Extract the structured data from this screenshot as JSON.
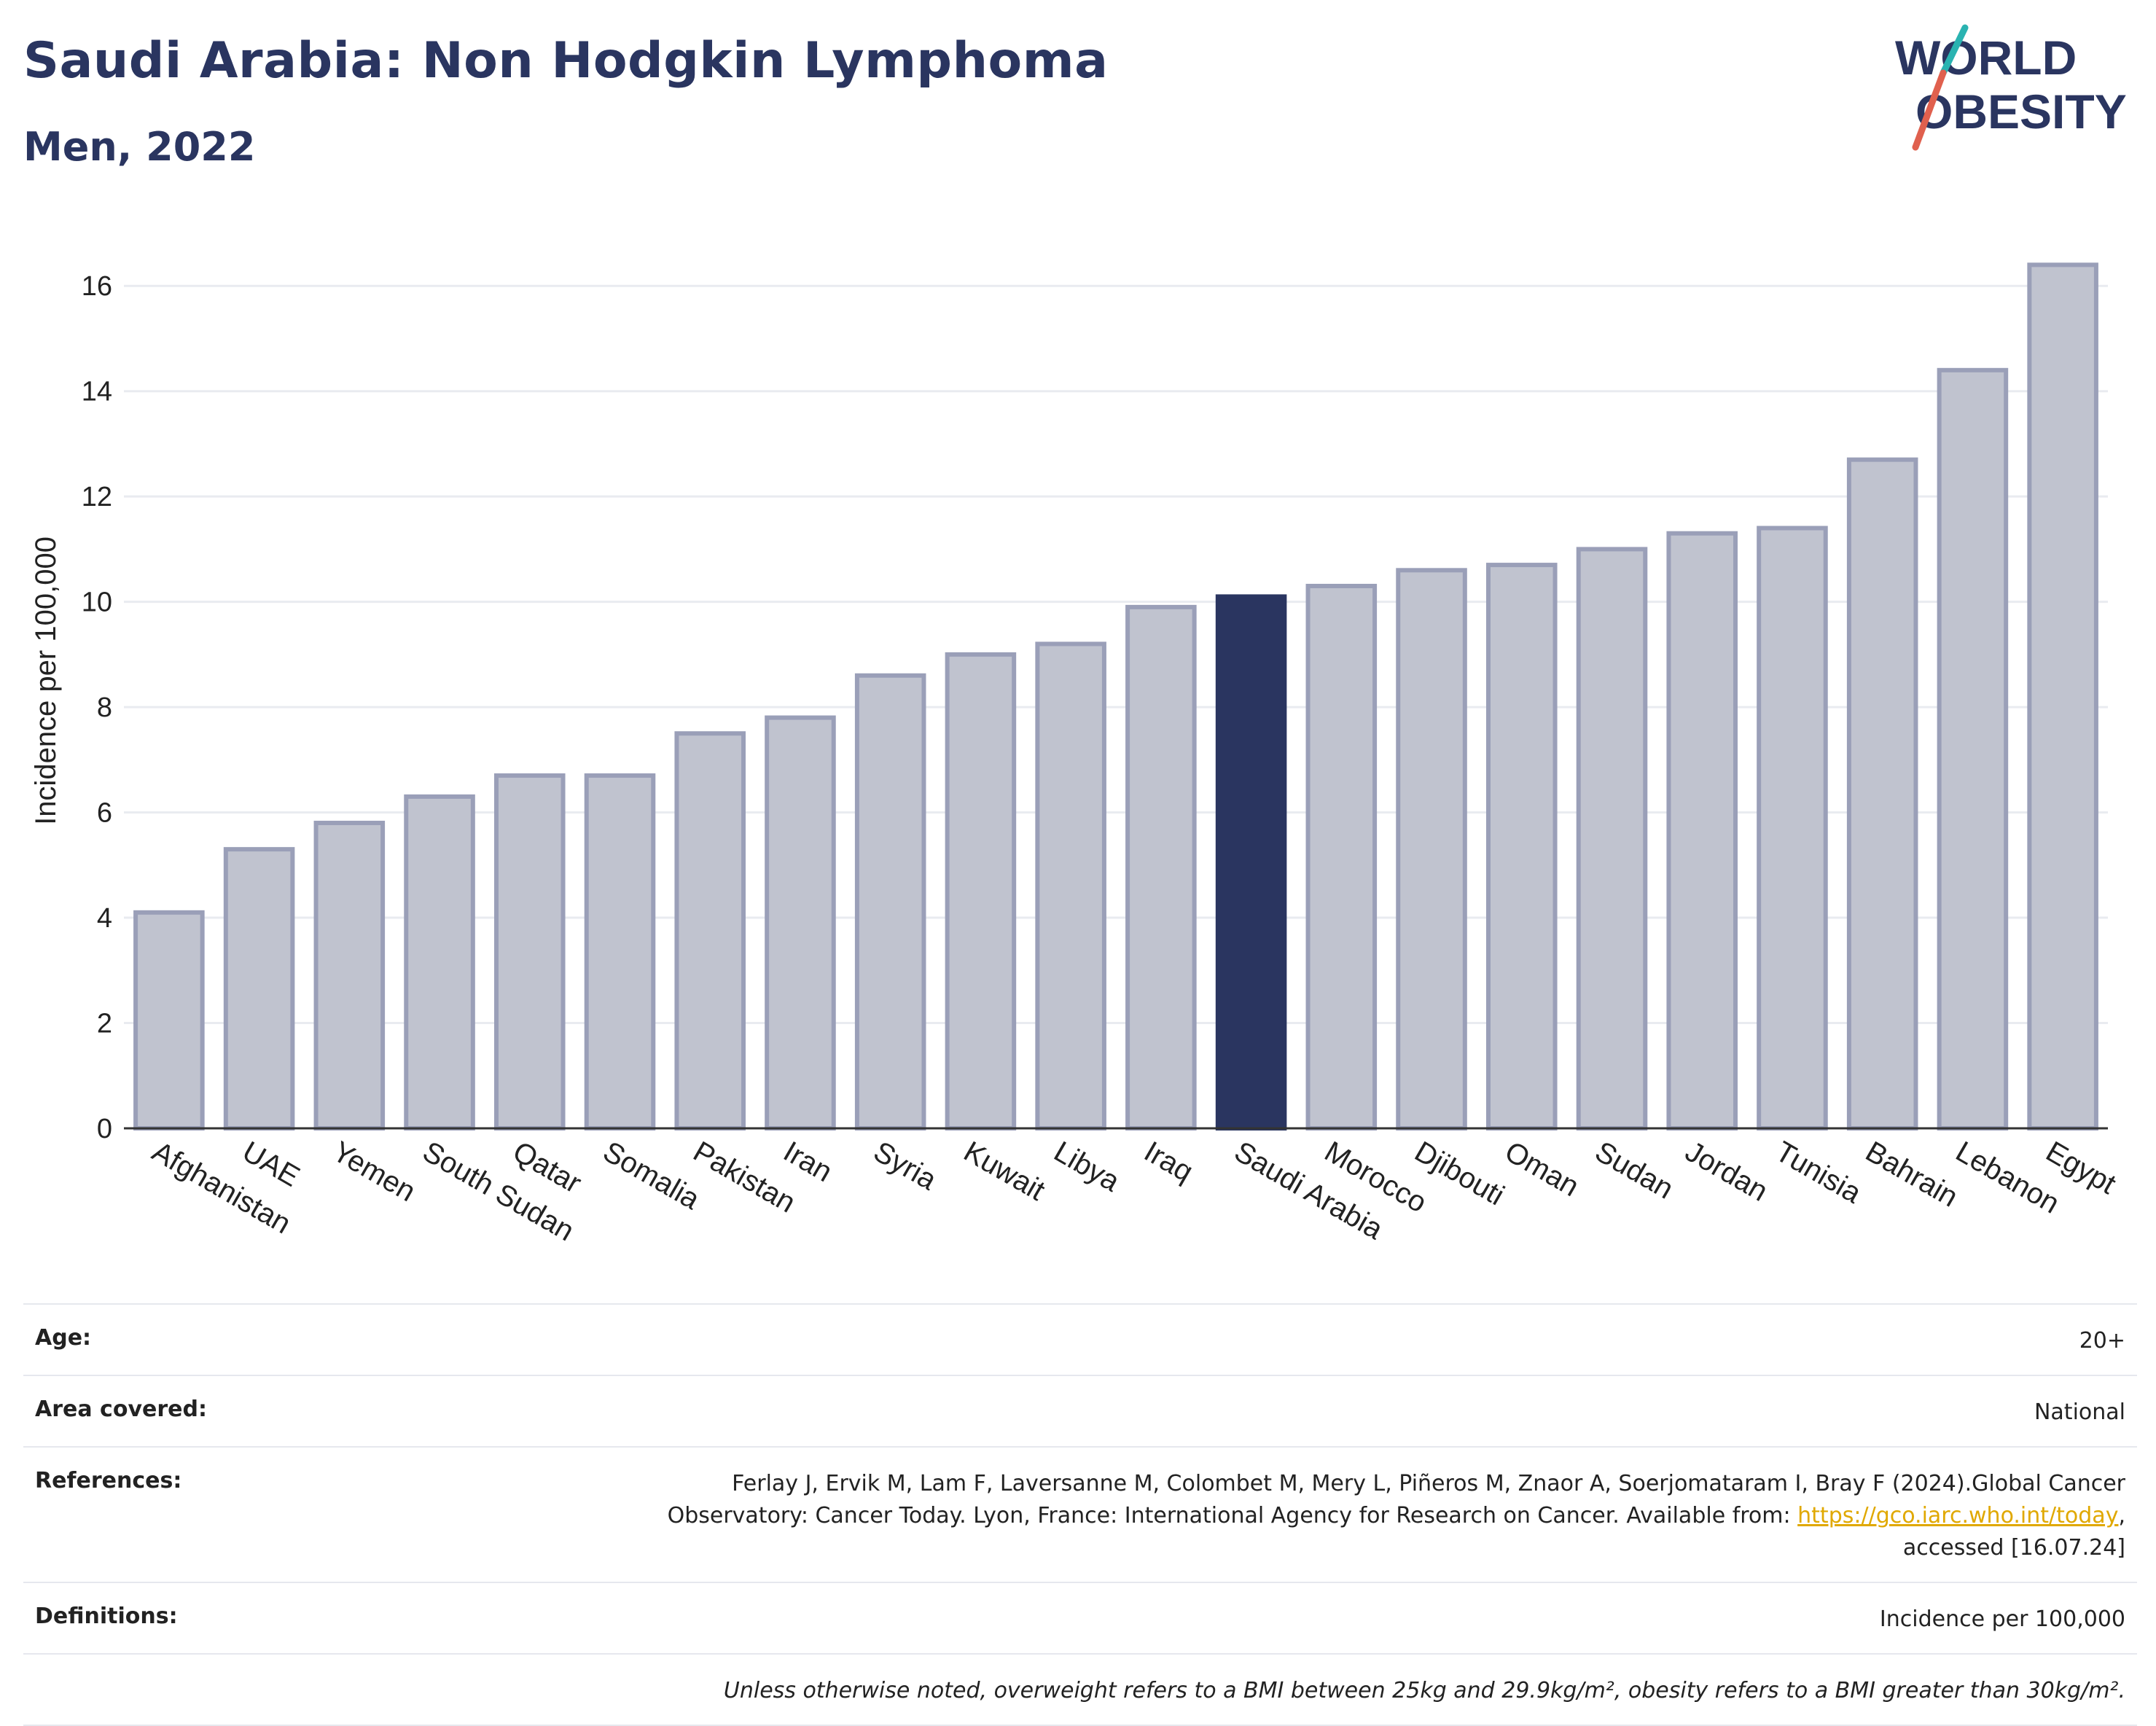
{
  "header": {
    "title": "Saudi Arabia: Non Hodgkin Lymphoma",
    "subtitle": "Men, 2022",
    "logo_line1_pre": "W",
    "logo_line1_o": "O",
    "logo_line1_post": "RLD",
    "logo_line2_o": "O",
    "logo_line2_post": "BESITY"
  },
  "chart_data": {
    "type": "bar",
    "title": "Saudi Arabia: Non Hodgkin Lymphoma",
    "subtitle": "Men, 2022",
    "ylabel": "Incidence per 100,000",
    "xlabel": "",
    "ylim": [
      0,
      17
    ],
    "yticks": [
      0,
      2,
      4,
      6,
      8,
      10,
      12,
      14,
      16
    ],
    "grid": true,
    "highlight": "Saudi Arabia",
    "categories": [
      "Afghanistan",
      "UAE",
      "Yemen",
      "South Sudan",
      "Qatar",
      "Somalia",
      "Pakistan",
      "Iran",
      "Syria",
      "Kuwait",
      "Libya",
      "Iraq",
      "Saudi Arabia",
      "Morocco",
      "Djibouti",
      "Oman",
      "Sudan",
      "Jordan",
      "Tunisia",
      "Bahrain",
      "Lebanon",
      "Egypt"
    ],
    "values": [
      4.1,
      5.3,
      5.8,
      6.3,
      6.7,
      6.7,
      7.5,
      7.8,
      8.6,
      9.0,
      9.2,
      9.9,
      10.1,
      10.3,
      10.6,
      10.7,
      11.0,
      11.3,
      11.4,
      12.7,
      14.4,
      16.4
    ],
    "colors": {
      "bar": "#c0c3cf",
      "bar_border": "#9a9fb8",
      "highlight": "#2a3560"
    }
  },
  "info": {
    "age_label": "Age:",
    "age_value": "20+",
    "area_label": "Area covered:",
    "area_value": "National",
    "references_label": "References:",
    "references_line1": "Ferlay J, Ervik M, Lam F, Laversanne M, Colombet M, Mery L, Piñeros M, Znaor A, Soerjomataram I, Bray F (2024).Global Cancer",
    "references_line2_pre": "Observatory: Cancer Today. Lyon, France: International Agency for Research on Cancer. Available from: ",
    "references_link": "https://gco.iarc.who.int/today",
    "references_line2_post": ",",
    "references_line3": "accessed [16.07.24]",
    "definitions_label": "Definitions:",
    "definitions_value": "Incidence per 100,000",
    "note": "Unless otherwise noted, overweight refers to a BMI between 25kg and 29.9kg/m², obesity refers to a BMI greater than 30kg/m²."
  }
}
